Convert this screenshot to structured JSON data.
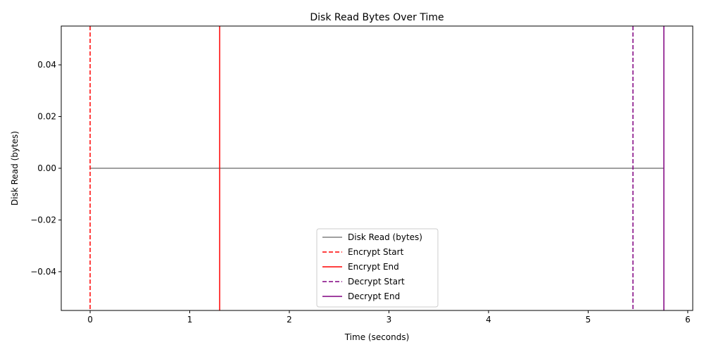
{
  "chart_data": {
    "type": "line",
    "title": "Disk Read Bytes Over Time",
    "xlabel": "Time (seconds)",
    "ylabel": "Disk Read (bytes)",
    "xlim": [
      -0.29,
      6.05
    ],
    "ylim": [
      -0.055,
      0.055
    ],
    "x_ticks": [
      0,
      1,
      2,
      3,
      4,
      5,
      6
    ],
    "x_tick_labels": [
      "0",
      "1",
      "2",
      "3",
      "4",
      "5",
      "6"
    ],
    "y_ticks": [
      -0.04,
      -0.02,
      0.0,
      0.02,
      0.04
    ],
    "y_tick_labels": [
      "−0.04",
      "−0.02",
      "0.00",
      "0.02",
      "0.04"
    ],
    "grid": false,
    "legend_position": "bottom-center",
    "series": [
      {
        "name": "Disk Read (bytes)",
        "color": "#808080",
        "style": "solid",
        "x": [
          0,
          5.76
        ],
        "y": [
          0,
          0
        ]
      }
    ],
    "vertical_lines": [
      {
        "name": "Encrypt Start",
        "x": 0.0,
        "color": "#ff0000",
        "style": "dashed"
      },
      {
        "name": "Encrypt End",
        "x": 1.3,
        "color": "#ff0000",
        "style": "solid"
      },
      {
        "name": "Decrypt Start",
        "x": 5.45,
        "color": "#800080",
        "style": "dashed"
      },
      {
        "name": "Decrypt End",
        "x": 5.76,
        "color": "#800080",
        "style": "solid"
      }
    ]
  }
}
